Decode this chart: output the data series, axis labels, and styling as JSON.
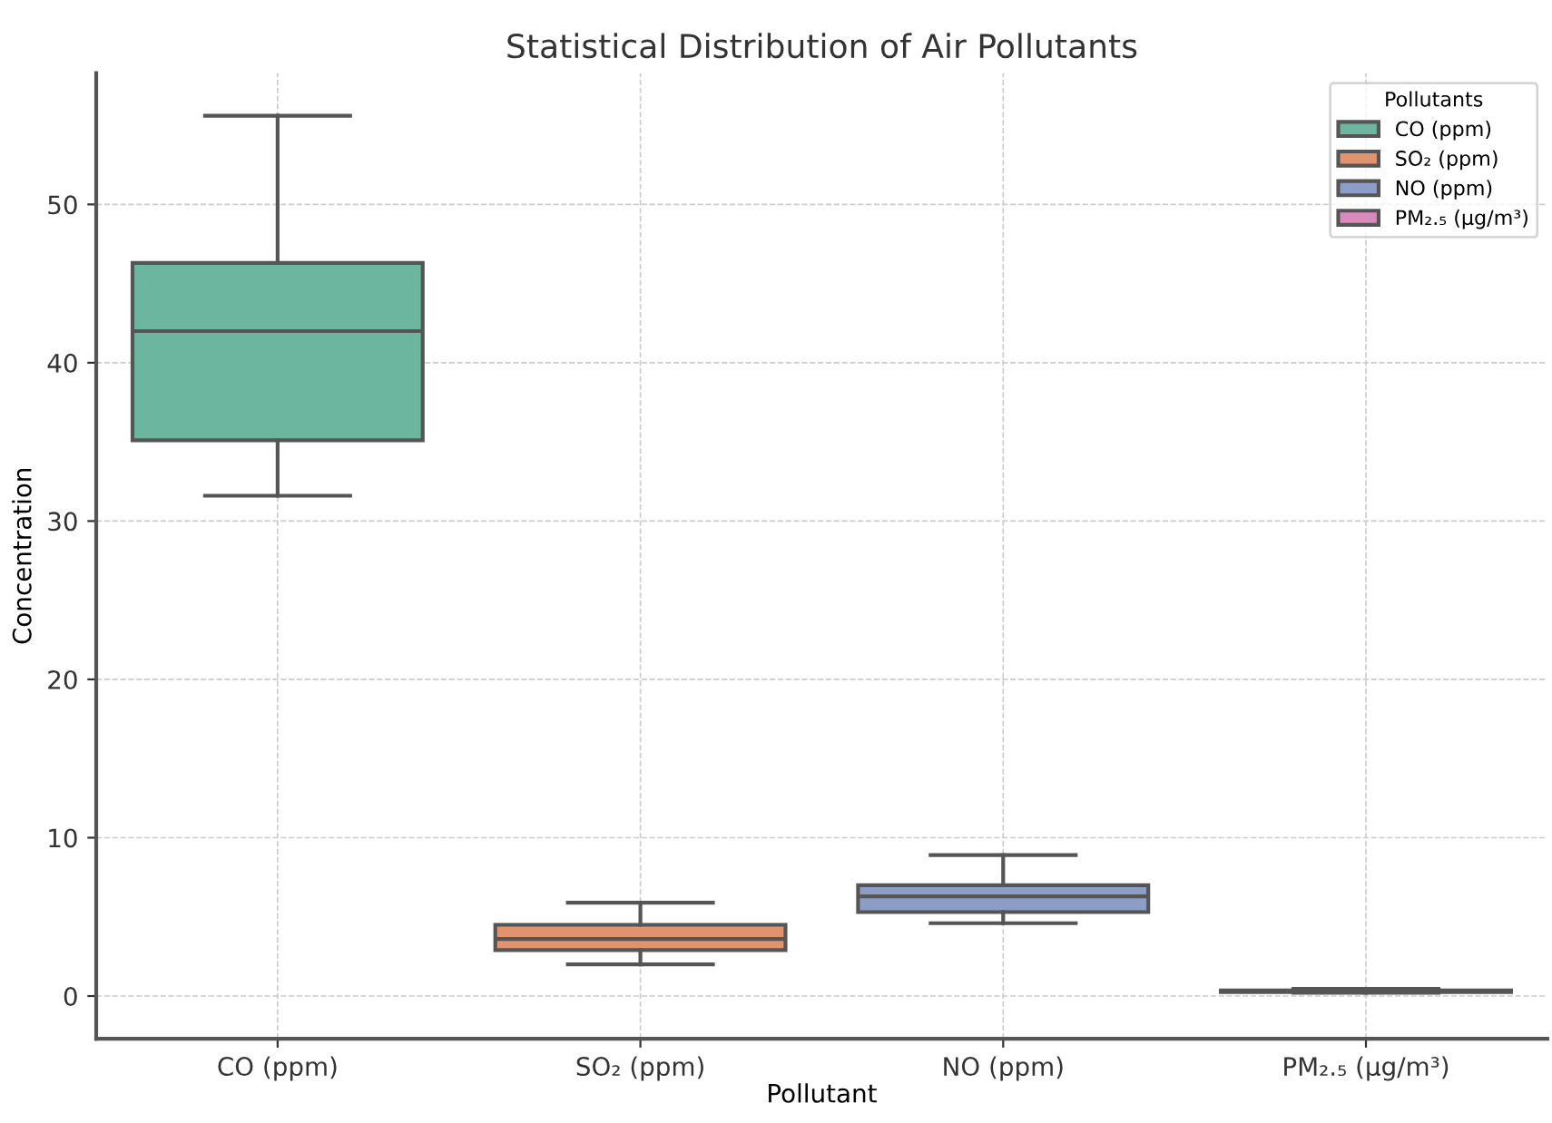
{
  "chart_data": {
    "type": "box",
    "title": "Statistical Distribution of Air Pollutants",
    "xlabel": "Pollutant",
    "ylabel": "Concentration",
    "legend_title": "Pollutants",
    "categories": [
      "CO (ppm)",
      "SO₂ (ppm)",
      "NO (ppm)",
      "PM₂.₅ (μg/m³)"
    ],
    "series": [
      {
        "name": "CO (ppm)",
        "color": "#6cb59e",
        "boxes": [
          {
            "low": 31.6,
            "q1": 35.1,
            "median": 42.0,
            "q3": 46.3,
            "high": 55.6
          },
          null,
          null,
          null
        ]
      },
      {
        "name": "SO₂ (ppm)",
        "color": "#e0936c",
        "boxes": [
          null,
          {
            "low": 2.0,
            "q1": 2.9,
            "median": 3.6,
            "q3": 4.5,
            "high": 5.9
          },
          null,
          null
        ]
      },
      {
        "name": "NO (ppm)",
        "color": "#8d9dc6",
        "boxes": [
          null,
          null,
          {
            "low": 4.6,
            "q1": 5.3,
            "median": 6.3,
            "q3": 7.0,
            "high": 8.9
          },
          null
        ]
      },
      {
        "name": "PM₂.₅ (μg/m³)",
        "color": "#d98abb",
        "boxes": [
          null,
          null,
          null,
          {
            "low": 0.2,
            "q1": 0.25,
            "median": 0.3,
            "q3": 0.35,
            "high": 0.45
          }
        ]
      }
    ],
    "ylim": [
      -2.7,
      58.3
    ],
    "yticks": [
      0,
      10,
      20,
      30,
      40,
      50
    ],
    "grid": true,
    "legend": "top right"
  }
}
